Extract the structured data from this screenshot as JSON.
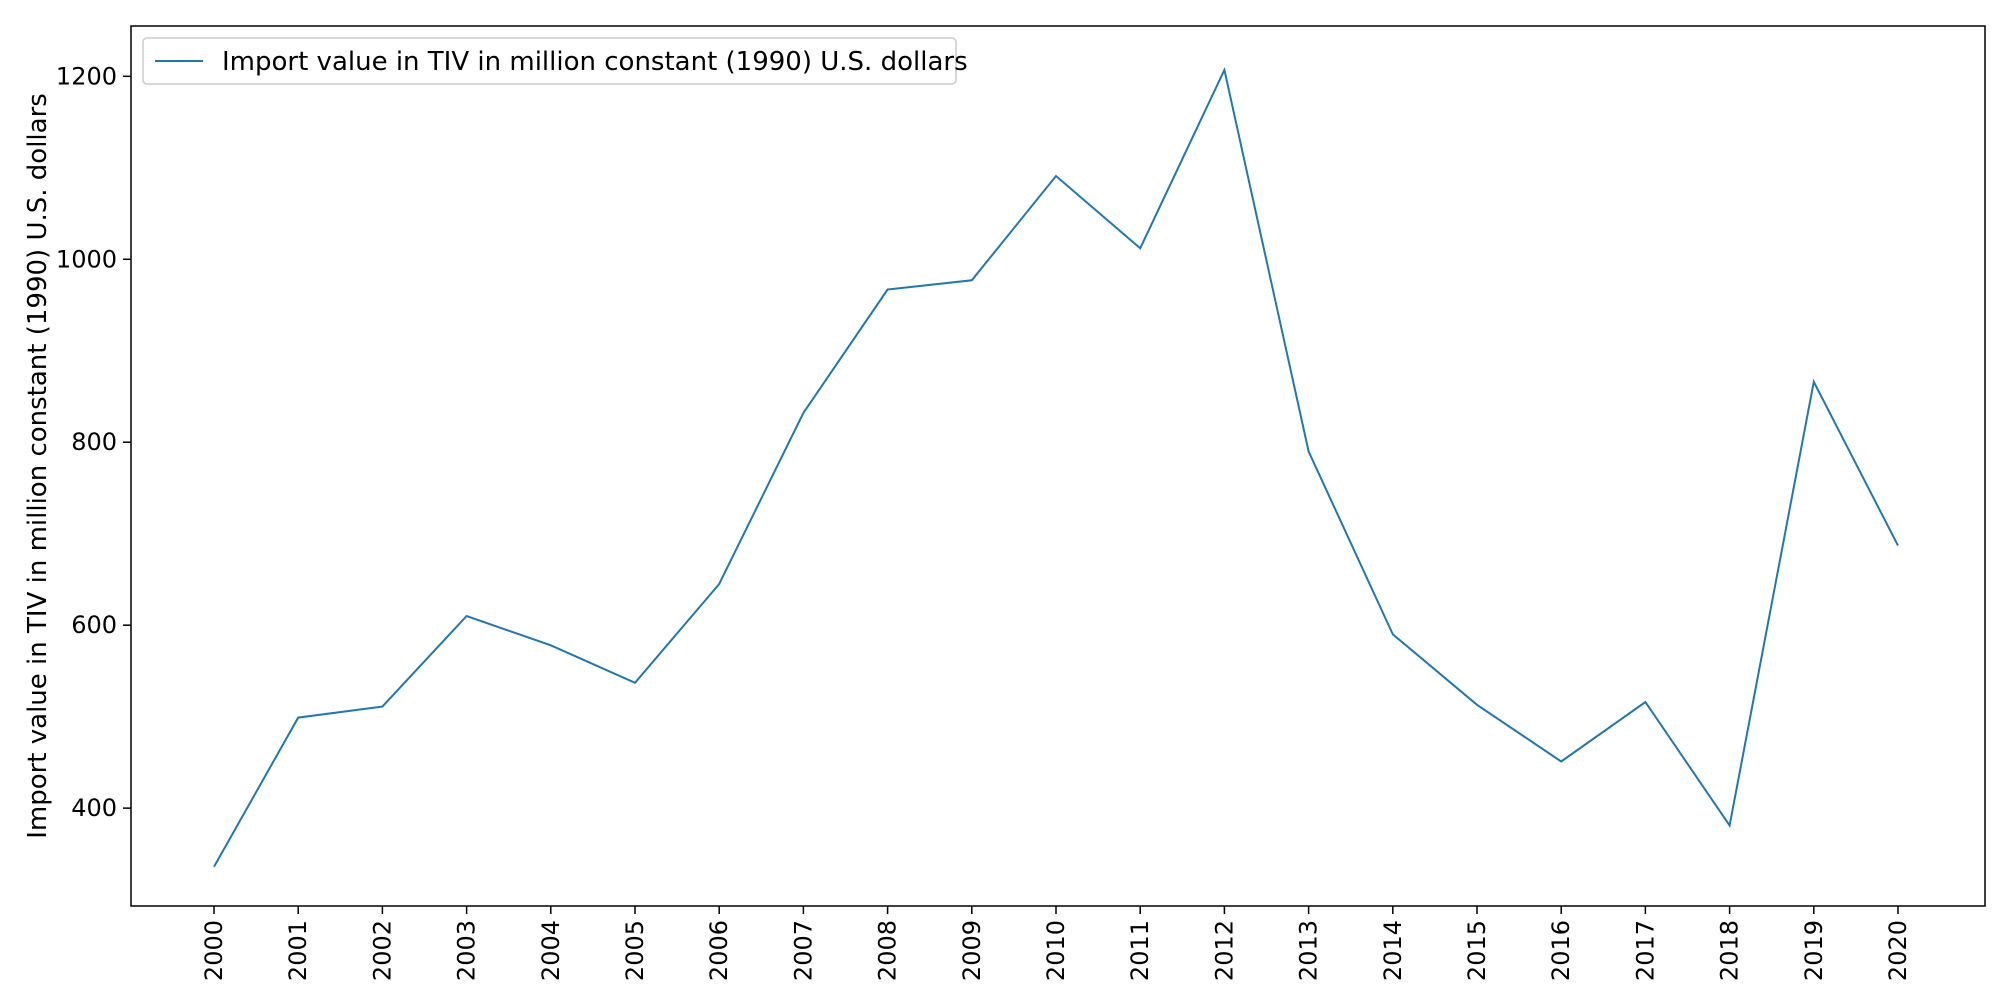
{
  "chart_data": {
    "type": "line",
    "title": "",
    "xlabel": "",
    "ylabel": "Import value in TIV in million constant (1990) U.S. dollars",
    "x": [
      "2000",
      "2001",
      "2002",
      "2003",
      "2004",
      "2005",
      "2006",
      "2007",
      "2008",
      "2009",
      "2010",
      "2011",
      "2012",
      "2013",
      "2014",
      "2015",
      "2016",
      "2017",
      "2018",
      "2019",
      "2020"
    ],
    "series": [
      {
        "name": "Import value in TIV in million constant (1990) U.S. dollars",
        "color": "#1f77b4",
        "values": [
          336,
          499,
          511,
          610,
          578,
          537,
          645,
          832,
          967,
          977,
          1091,
          1012,
          1207,
          790,
          590,
          513,
          451,
          516,
          381,
          866,
          687
        ]
      }
    ],
    "ylim": [
      293,
      1255
    ],
    "yticks": [
      400,
      600,
      800,
      1000,
      1200
    ],
    "grid": false,
    "legend": "top-left"
  }
}
